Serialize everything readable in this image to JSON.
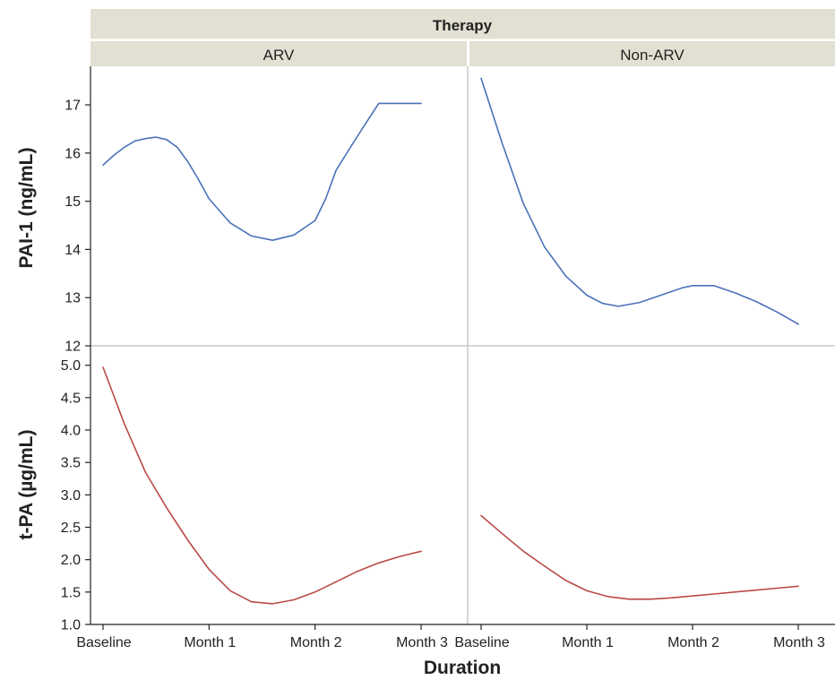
{
  "chart_data": {
    "type": "line",
    "title": "Therapy",
    "xlabel": "Duration",
    "x_categories": [
      "Baseline",
      "Month 1",
      "Month 2",
      "Month 3"
    ],
    "columns": [
      "ARV",
      "Non-ARV"
    ],
    "rows": [
      {
        "ylabel": "PAI-1 (ng/mL)",
        "ylim": [
          12,
          17.8
        ],
        "yticks": [
          12,
          13,
          14,
          15,
          16,
          17
        ],
        "ytick_labels": [
          "12",
          "13",
          "14",
          "15",
          "16",
          "17"
        ],
        "color": "#4a72b8",
        "series": {
          "ARV": {
            "x": [
              0,
              0.1,
              0.2,
              0.3,
              0.4,
              0.5,
              0.6,
              0.7,
              0.8,
              0.9,
              1.0,
              1.2,
              1.4,
              1.6,
              1.8,
              2.0,
              2.1,
              2.2,
              2.4,
              2.6,
              2.8,
              3.0
            ],
            "y": [
              15.75,
              15.95,
              16.12,
              16.25,
              16.3,
              16.33,
              16.28,
              16.12,
              15.82,
              15.45,
              15.05,
              14.55,
              14.28,
              14.19,
              14.3,
              14.6,
              15.05,
              15.65,
              16.35,
              17.03,
              17.03,
              17.03
            ]
          },
          "Non-ARV": {
            "x": [
              0,
              0.2,
              0.4,
              0.6,
              0.8,
              1.0,
              1.15,
              1.3,
              1.5,
              1.7,
              1.9,
              2.0,
              2.2,
              2.4,
              2.6,
              2.8,
              3.0
            ],
            "y": [
              17.55,
              16.2,
              14.95,
              14.05,
              13.45,
              13.05,
              12.88,
              12.82,
              12.9,
              13.05,
              13.2,
              13.25,
              13.25,
              13.1,
              12.92,
              12.7,
              12.45
            ]
          }
        }
      },
      {
        "ylabel": "t-PA (µg/mL)",
        "ylim": [
          1.0,
          5.3
        ],
        "yticks": [
          1.0,
          1.5,
          2.0,
          2.5,
          3.0,
          3.5,
          4.0,
          4.5,
          5.0
        ],
        "ytick_labels": [
          "1.0",
          "1.5",
          "2.0",
          "2.5",
          "3.0",
          "3.5",
          "4.0",
          "4.5",
          "5.0"
        ],
        "color": "#b94a48",
        "series": {
          "ARV": {
            "x": [
              0,
              0.2,
              0.4,
              0.6,
              0.8,
              1.0,
              1.2,
              1.4,
              1.6,
              1.8,
              2.0,
              2.2,
              2.4,
              2.6,
              2.8,
              3.0
            ],
            "y": [
              4.97,
              4.1,
              3.35,
              2.8,
              2.3,
              1.85,
              1.52,
              1.35,
              1.32,
              1.38,
              1.5,
              1.66,
              1.82,
              1.95,
              2.05,
              2.13
            ]
          },
          "Non-ARV": {
            "x": [
              0,
              0.2,
              0.4,
              0.6,
              0.8,
              1.0,
              1.2,
              1.4,
              1.6,
              1.8,
              2.0,
              2.2,
              2.4,
              2.6,
              2.8,
              3.0
            ],
            "y": [
              2.68,
              2.4,
              2.13,
              1.9,
              1.68,
              1.52,
              1.43,
              1.39,
              1.39,
              1.41,
              1.44,
              1.47,
              1.5,
              1.53,
              1.56,
              1.59
            ]
          }
        }
      }
    ]
  },
  "colors": {
    "header_fill": "#e2e0d2",
    "divider": "#c8c8c8",
    "axis": "#222222",
    "text": "#222222"
  }
}
